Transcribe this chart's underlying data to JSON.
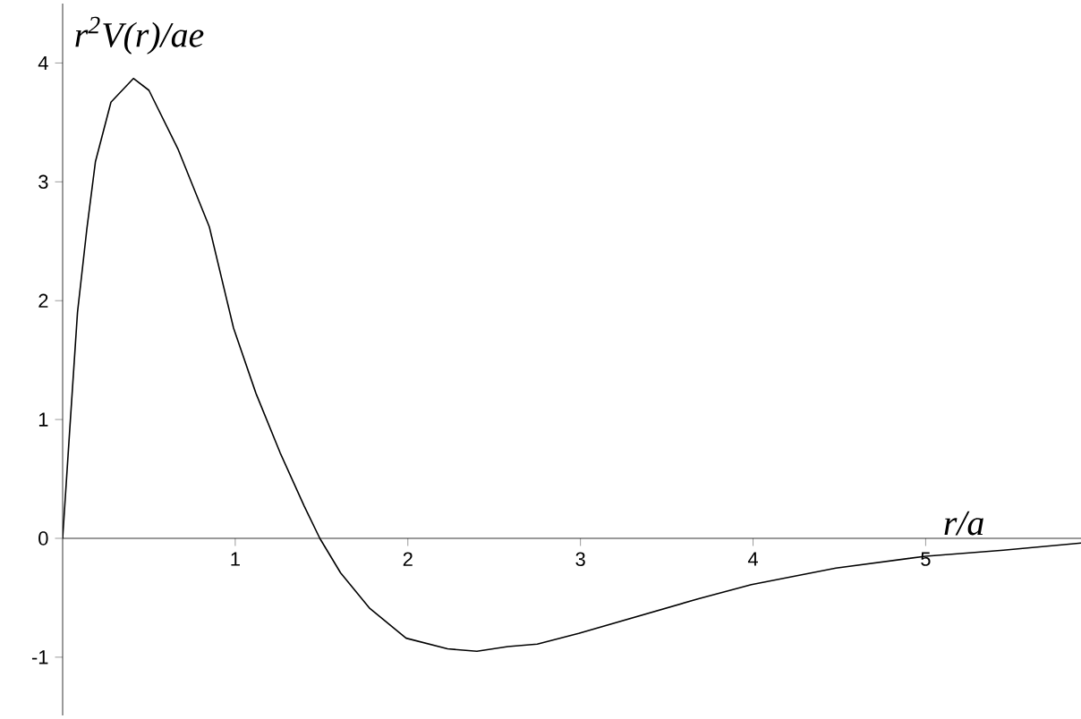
{
  "chart_data": {
    "type": "line",
    "xlabel": "r/a",
    "ylabel": "r$^{2}$V(r)/ae",
    "color": "#000000",
    "x": [
      0,
      0.045,
      0.086,
      0.14,
      0.19,
      0.28,
      0.41,
      0.5,
      0.67,
      0.85,
      0.99,
      1.12,
      1.26,
      1.4,
      1.49,
      1.61,
      1.78,
      1.99,
      2.23,
      2.4,
      2.58,
      2.75,
      2.99,
      3.68,
      3.99,
      4.48,
      5.0,
      5.45,
      5.9
    ],
    "values": [
      0,
      1.0,
      1.9,
      2.6,
      3.17,
      3.67,
      3.87,
      3.77,
      3.27,
      2.62,
      1.77,
      1.22,
      0.72,
      0.27,
      0,
      -0.29,
      -0.59,
      -0.84,
      -0.93,
      -0.95,
      -0.91,
      -0.89,
      -0.8,
      -0.51,
      -0.39,
      -0.25,
      -0.15,
      -0.1,
      -0.04
    ],
    "xlim": [
      0,
      5.9
    ],
    "ylim": [
      -1.49,
      4.5
    ],
    "xticks": [
      1,
      2,
      3,
      4,
      5
    ],
    "yticks": [
      -1,
      0,
      1,
      2,
      3,
      4
    ]
  }
}
